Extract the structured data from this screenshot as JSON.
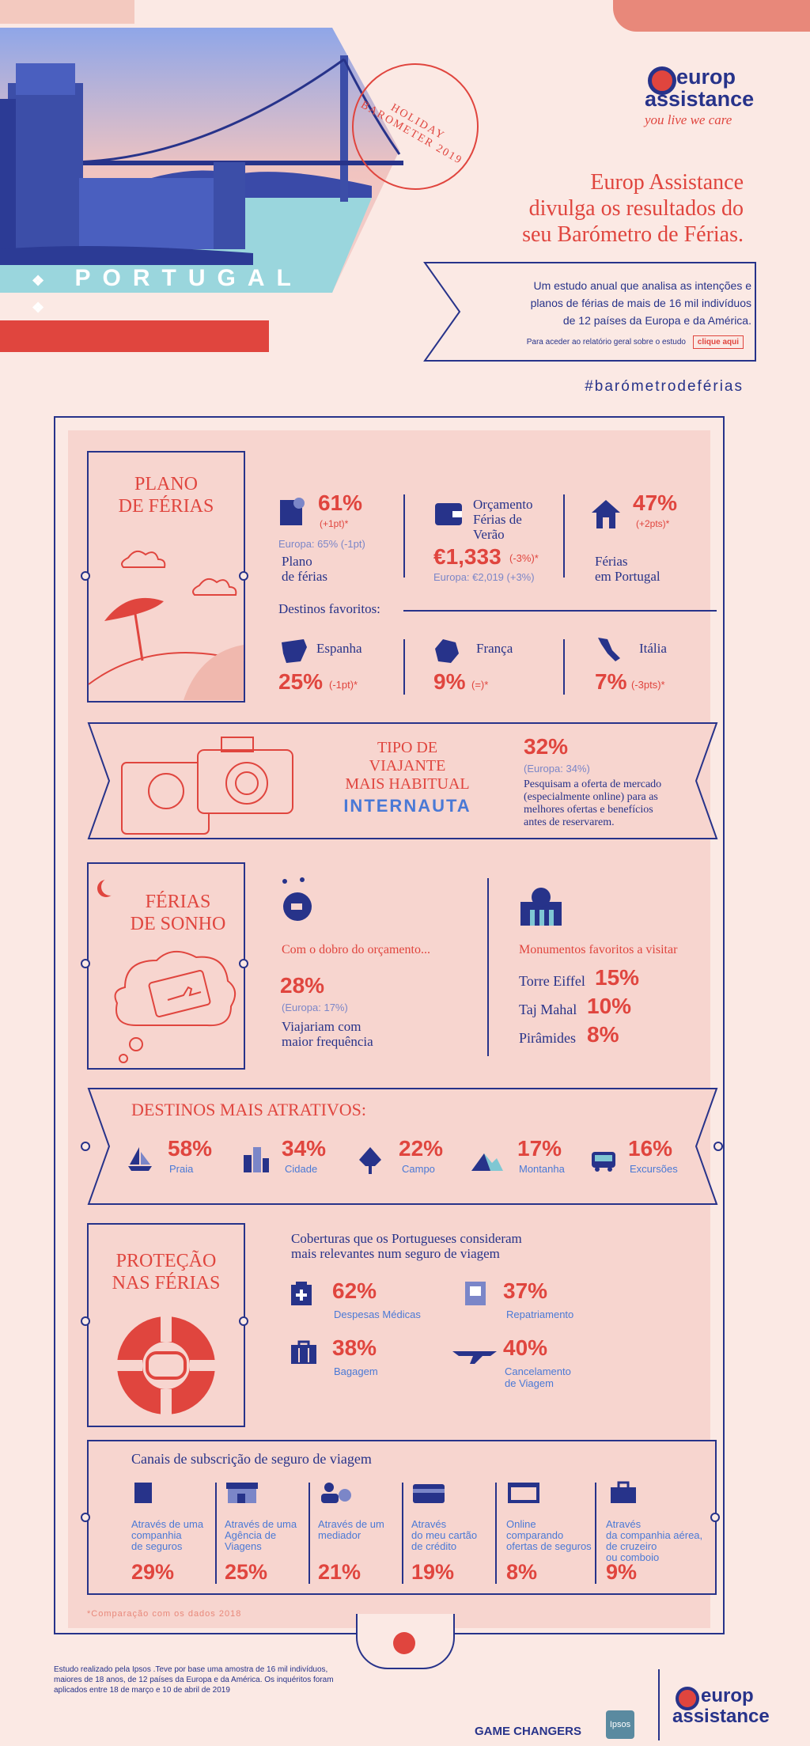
{
  "header": {
    "country": "PORTUGAL",
    "stamp_text": "HOLIDAY BAROMETER 2019",
    "brand_line1": "europ",
    "brand_line2": "assistance",
    "tagline": "you live we care",
    "headline": [
      "Europ Assistance",
      "divulga os resultados do",
      "seu Barómetro de Férias."
    ],
    "intro": [
      "Um estudo anual que analisa as intenções e",
      "planos de férias de mais de 16 mil indivíduos",
      "de 12 países da Europa e da América."
    ],
    "report_text": "Para aceder ao relatório geral sobre o estudo",
    "report_button": "clique aqui",
    "hashtag": "#barómetrodeférias"
  },
  "plano": {
    "title": [
      "PLANO",
      "DE FÉRIAS"
    ],
    "stat1": {
      "value": "61%",
      "delta": "(+1pt)*",
      "europe": "Europa: 65% (-1pt)",
      "label": [
        "Plano",
        "de férias"
      ]
    },
    "stat2": {
      "title": [
        "Orçamento",
        "Férias de",
        "Verão"
      ],
      "value": "€1,333",
      "delta": "(-3%)*",
      "europe": "Europa: €2,019 (+3%)"
    },
    "stat3": {
      "value": "47%",
      "delta": "(+2pts)*",
      "label": [
        "Férias",
        "em Portugal"
      ]
    },
    "destinos_label": "Destinos favoritos:",
    "destinos": [
      {
        "name": "Espanha",
        "value": "25%",
        "delta": "(-1pt)*"
      },
      {
        "name": "França",
        "value": "9%",
        "delta": "(=)*"
      },
      {
        "name": "Itália",
        "value": "7%",
        "delta": "(-3pts)*"
      }
    ]
  },
  "tipo": {
    "title": [
      "TIPO DE",
      "VIAJANTE",
      "MAIS HABITUAL"
    ],
    "type": "INTERNAUTA",
    "value": "32%",
    "europe": "(Europa: 34%)",
    "desc": [
      "Pesquisam a oferta de mercado",
      "(especialmente online) para as",
      "melhores ofertas e benefícios",
      "antes de reservarem."
    ]
  },
  "sonho": {
    "title": [
      "FÉRIAS",
      "DE SONHO"
    ],
    "budget_label": "Com o dobro do orçamento...",
    "value": "28%",
    "europe": "(Europa: 17%)",
    "desc": [
      "Viajariam com",
      "maior frequência"
    ],
    "monuments_label": "Monumentos favoritos a visitar",
    "monuments": [
      {
        "name": "Torre Eiffel",
        "value": "15%"
      },
      {
        "name": "Taj Mahal",
        "value": "10%"
      },
      {
        "name": "Pirâmides",
        "value": "8%"
      }
    ]
  },
  "atrativos": {
    "title": "DESTINOS MAIS ATRATIVOS:",
    "items": [
      {
        "value": "58%",
        "label": "Praia",
        "icon": "sailboat-icon"
      },
      {
        "value": "34%",
        "label": "Cidade",
        "icon": "city-icon"
      },
      {
        "value": "22%",
        "label": "Campo",
        "icon": "tree-icon"
      },
      {
        "value": "17%",
        "label": "Montanha",
        "icon": "mountain-icon"
      },
      {
        "value": "16%",
        "label": "Excursões",
        "icon": "bus-icon"
      }
    ]
  },
  "protecao": {
    "title": [
      "PROTEÇÃO",
      "NAS FÉRIAS"
    ],
    "intro": [
      "Coberturas que os Portugueses consideram",
      "mais relevantes num seguro de viagem"
    ],
    "items": [
      {
        "value": "62%",
        "label": [
          "Despesas Médicas"
        ],
        "icon": "medical-kit-icon"
      },
      {
        "value": "37%",
        "label": [
          "Repatriamento"
        ],
        "icon": "passport-icon"
      },
      {
        "value": "38%",
        "label": [
          "Bagagem"
        ],
        "icon": "luggage-icon"
      },
      {
        "value": "40%",
        "label": [
          "Cancelamento",
          "de Viagem"
        ],
        "icon": "plane-icon"
      }
    ]
  },
  "canais": {
    "title": "Canais de subscrição de seguro de viagem",
    "items": [
      {
        "label": [
          "Através de uma",
          "companhia",
          "de seguros"
        ],
        "value": "29%",
        "icon": "document-icon"
      },
      {
        "label": [
          "Através de uma",
          "Agência de",
          "Viagens"
        ],
        "value": "25%",
        "icon": "shop-icon"
      },
      {
        "label": [
          "Através de um",
          "mediador"
        ],
        "value": "21%",
        "icon": "agent-icon"
      },
      {
        "label": [
          "Através",
          "do meu cartão",
          "de crédito"
        ],
        "value": "19%",
        "icon": "credit-card-icon"
      },
      {
        "label": [
          "Online",
          "comparando",
          "ofertas de seguros"
        ],
        "value": "8%",
        "icon": "browser-icon"
      },
      {
        "label": [
          "Através",
          "da companhia aérea,",
          "de cruzeiro",
          "ou comboio"
        ],
        "value": "9%",
        "icon": "suitcase-icon"
      }
    ],
    "footnote": "*Comparação com os dados 2018"
  },
  "footer": {
    "study": [
      "Estudo realizado pela Ipsos .Teve por base uma amostra de 16 mil indivíduos,",
      "maiores de 18 anos, de 12 países da Europa e da América. Os inquéritos foram",
      "aplicados entre 18 de março e 10 de abril de 2019"
    ],
    "game_changers": "GAME CHANGERS",
    "ipsos": "Ipsos",
    "brand_line1": "europ",
    "brand_line2": "assistance"
  }
}
